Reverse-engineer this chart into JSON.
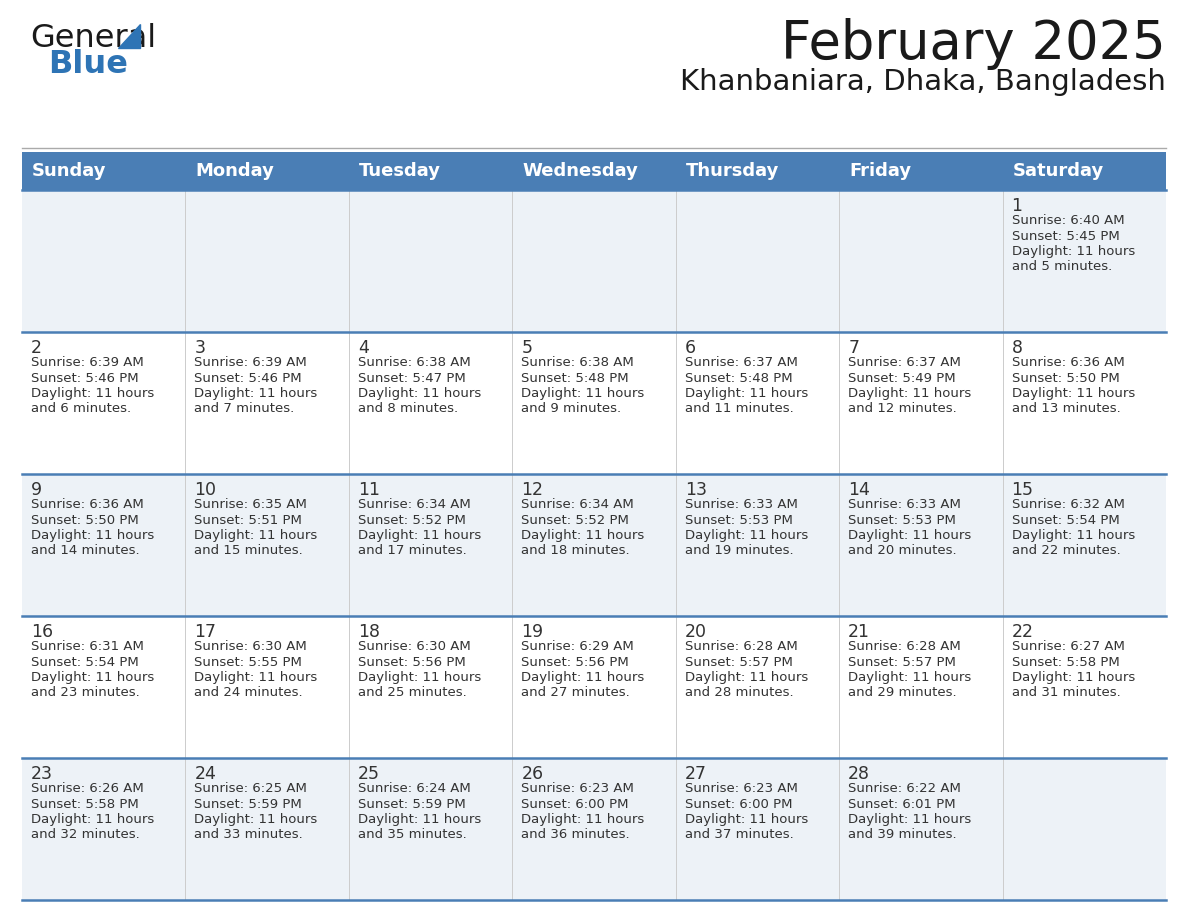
{
  "title": "February 2025",
  "subtitle": "Khanbaniara, Dhaka, Bangladesh",
  "header_bg": "#4a7eb5",
  "header_text_color": "#ffffff",
  "row_bg_odd": "#edf2f7",
  "row_bg_even": "#ffffff",
  "border_color": "#4a7eb5",
  "text_color": "#333333",
  "days_of_week": [
    "Sunday",
    "Monday",
    "Tuesday",
    "Wednesday",
    "Thursday",
    "Friday",
    "Saturday"
  ],
  "calendar": [
    [
      null,
      null,
      null,
      null,
      null,
      null,
      {
        "day": "1",
        "sunrise": "6:40 AM",
        "sunset": "5:45 PM",
        "daylight": "11 hours",
        "daylight2": "and 5 minutes."
      }
    ],
    [
      {
        "day": "2",
        "sunrise": "6:39 AM",
        "sunset": "5:46 PM",
        "daylight": "11 hours",
        "daylight2": "and 6 minutes."
      },
      {
        "day": "3",
        "sunrise": "6:39 AM",
        "sunset": "5:46 PM",
        "daylight": "11 hours",
        "daylight2": "and 7 minutes."
      },
      {
        "day": "4",
        "sunrise": "6:38 AM",
        "sunset": "5:47 PM",
        "daylight": "11 hours",
        "daylight2": "and 8 minutes."
      },
      {
        "day": "5",
        "sunrise": "6:38 AM",
        "sunset": "5:48 PM",
        "daylight": "11 hours",
        "daylight2": "and 9 minutes."
      },
      {
        "day": "6",
        "sunrise": "6:37 AM",
        "sunset": "5:48 PM",
        "daylight": "11 hours",
        "daylight2": "and 11 minutes."
      },
      {
        "day": "7",
        "sunrise": "6:37 AM",
        "sunset": "5:49 PM",
        "daylight": "11 hours",
        "daylight2": "and 12 minutes."
      },
      {
        "day": "8",
        "sunrise": "6:36 AM",
        "sunset": "5:50 PM",
        "daylight": "11 hours",
        "daylight2": "and 13 minutes."
      }
    ],
    [
      {
        "day": "9",
        "sunrise": "6:36 AM",
        "sunset": "5:50 PM",
        "daylight": "11 hours",
        "daylight2": "and 14 minutes."
      },
      {
        "day": "10",
        "sunrise": "6:35 AM",
        "sunset": "5:51 PM",
        "daylight": "11 hours",
        "daylight2": "and 15 minutes."
      },
      {
        "day": "11",
        "sunrise": "6:34 AM",
        "sunset": "5:52 PM",
        "daylight": "11 hours",
        "daylight2": "and 17 minutes."
      },
      {
        "day": "12",
        "sunrise": "6:34 AM",
        "sunset": "5:52 PM",
        "daylight": "11 hours",
        "daylight2": "and 18 minutes."
      },
      {
        "day": "13",
        "sunrise": "6:33 AM",
        "sunset": "5:53 PM",
        "daylight": "11 hours",
        "daylight2": "and 19 minutes."
      },
      {
        "day": "14",
        "sunrise": "6:33 AM",
        "sunset": "5:53 PM",
        "daylight": "11 hours",
        "daylight2": "and 20 minutes."
      },
      {
        "day": "15",
        "sunrise": "6:32 AM",
        "sunset": "5:54 PM",
        "daylight": "11 hours",
        "daylight2": "and 22 minutes."
      }
    ],
    [
      {
        "day": "16",
        "sunrise": "6:31 AM",
        "sunset": "5:54 PM",
        "daylight": "11 hours",
        "daylight2": "and 23 minutes."
      },
      {
        "day": "17",
        "sunrise": "6:30 AM",
        "sunset": "5:55 PM",
        "daylight": "11 hours",
        "daylight2": "and 24 minutes."
      },
      {
        "day": "18",
        "sunrise": "6:30 AM",
        "sunset": "5:56 PM",
        "daylight": "11 hours",
        "daylight2": "and 25 minutes."
      },
      {
        "day": "19",
        "sunrise": "6:29 AM",
        "sunset": "5:56 PM",
        "daylight": "11 hours",
        "daylight2": "and 27 minutes."
      },
      {
        "day": "20",
        "sunrise": "6:28 AM",
        "sunset": "5:57 PM",
        "daylight": "11 hours",
        "daylight2": "and 28 minutes."
      },
      {
        "day": "21",
        "sunrise": "6:28 AM",
        "sunset": "5:57 PM",
        "daylight": "11 hours",
        "daylight2": "and 29 minutes."
      },
      {
        "day": "22",
        "sunrise": "6:27 AM",
        "sunset": "5:58 PM",
        "daylight": "11 hours",
        "daylight2": "and 31 minutes."
      }
    ],
    [
      {
        "day": "23",
        "sunrise": "6:26 AM",
        "sunset": "5:58 PM",
        "daylight": "11 hours",
        "daylight2": "and 32 minutes."
      },
      {
        "day": "24",
        "sunrise": "6:25 AM",
        "sunset": "5:59 PM",
        "daylight": "11 hours",
        "daylight2": "and 33 minutes."
      },
      {
        "day": "25",
        "sunrise": "6:24 AM",
        "sunset": "5:59 PM",
        "daylight": "11 hours",
        "daylight2": "and 35 minutes."
      },
      {
        "day": "26",
        "sunrise": "6:23 AM",
        "sunset": "6:00 PM",
        "daylight": "11 hours",
        "daylight2": "and 36 minutes."
      },
      {
        "day": "27",
        "sunrise": "6:23 AM",
        "sunset": "6:00 PM",
        "daylight": "11 hours",
        "daylight2": "and 37 minutes."
      },
      {
        "day": "28",
        "sunrise": "6:22 AM",
        "sunset": "6:01 PM",
        "daylight": "11 hours",
        "daylight2": "and 39 minutes."
      },
      null
    ]
  ],
  "fig_width": 11.88,
  "fig_height": 9.18,
  "dpi": 100
}
